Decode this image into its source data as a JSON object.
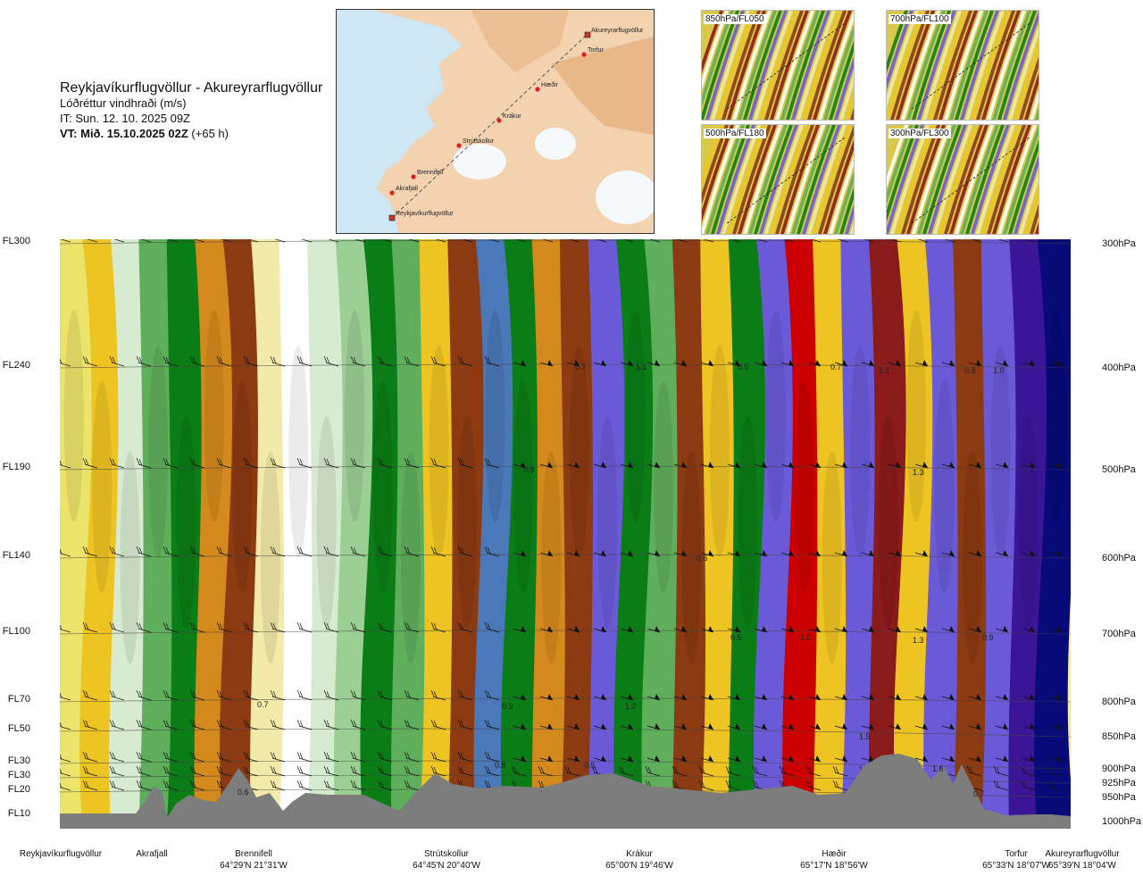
{
  "header": {
    "route": "Reykjavíkurflugvöllur - Akureyrarflugvöllur",
    "parameter": "Lóðréttur vindhraði (m/s)",
    "issue_time": "IT: Sun. 12. 10. 2025 09Z",
    "valid_time_bold": "VT: Mið. 15.10.2025 02Z",
    "valid_offset": "(+65 h)"
  },
  "route_map": {
    "waypoints": [
      "Reykjavíkurflugvöllur",
      "Akrafjall",
      "Brennifell",
      "Strútskollur",
      "Krákur",
      "Hæðir",
      "Torfur",
      "Akureyrarflugvöllur"
    ]
  },
  "level_maps": [
    {
      "label": "850hPa/FL050"
    },
    {
      "label": "700hPa/FL100"
    },
    {
      "label": "500hPa/FL180"
    },
    {
      "label": "300hPa/FL300"
    }
  ],
  "colors": {
    "red": "#cc0000",
    "darkred": "#8b1a1a",
    "brown": "#8b3a12",
    "orange": "#d4891c",
    "gold": "#eec422",
    "yellow": "#ece36a",
    "cream": "#f2eaa8",
    "white": "#ffffff",
    "lightgreen": "#d7ebd0",
    "midgreen": "#9ccf94",
    "green": "#5fae5c",
    "darkgreen": "#0a7d16",
    "steelblue": "#4a78b8",
    "blue": "#6a5ad8",
    "indigo": "#3a1596",
    "navy": "#070a78",
    "terrain": "#7d7d7d"
  },
  "chart_data": {
    "type": "heatmap",
    "x_axis": {
      "locations": [
        {
          "name": "Reykjavíkurflugvöllur",
          "coords": ""
        },
        {
          "name": "Akrafjall",
          "coords": ""
        },
        {
          "name": "Brennifell",
          "coords": "64°29'N 21°31'W"
        },
        {
          "name": "Strútskollur",
          "coords": "64°45'N 20°40'W"
        },
        {
          "name": "Krákur",
          "coords": "65°00'N 19°46'W"
        },
        {
          "name": "Hæðir",
          "coords": "65°17'N 18°56'W"
        },
        {
          "name": "Torfur",
          "coords": "65°33'N 18°07'W"
        },
        {
          "name": "Akureyrarflugvöllur",
          "coords": "65°39'N 18°04'W"
        }
      ]
    },
    "y_axis": {
      "flight_levels": [
        "FL300",
        "FL240",
        "FL190",
        "FL140",
        "FL100",
        "FL70",
        "FL50",
        "FL30",
        "FL30",
        "FL20",
        "FL10"
      ],
      "pressure_levels": [
        "300hPa",
        "400hPa",
        "500hPa",
        "600hPa",
        "700hPa",
        "800hPa",
        "850hPa",
        "900hPa",
        "925hPa",
        "950hPa",
        "1000hPa"
      ]
    },
    "value_labels": [
      "0.7",
      "1.1",
      "0.5",
      "0.7",
      "1.1",
      "0.9",
      "1.0",
      "0.9",
      "1.3",
      "0.6",
      "0.5",
      "1.0",
      "1.3",
      "0.9",
      "0.7",
      "0.9",
      "1.2",
      "1.5",
      "0.8",
      "0.5",
      "1.6",
      "0.7",
      "0.6"
    ],
    "color_bands": [
      "yellow",
      "gold",
      "lightgreen",
      "green",
      "darkgreen",
      "orange",
      "brown",
      "cream",
      "white",
      "lightgreen",
      "midgreen",
      "darkgreen",
      "green",
      "gold",
      "brown",
      "steelblue",
      "darkgreen",
      "orange",
      "brown",
      "blue",
      "darkgreen",
      "green",
      "brown",
      "gold",
      "darkgreen",
      "blue",
      "red",
      "gold",
      "blue",
      "darkred",
      "gold",
      "blue",
      "brown",
      "blue",
      "indigo",
      "navy"
    ]
  }
}
